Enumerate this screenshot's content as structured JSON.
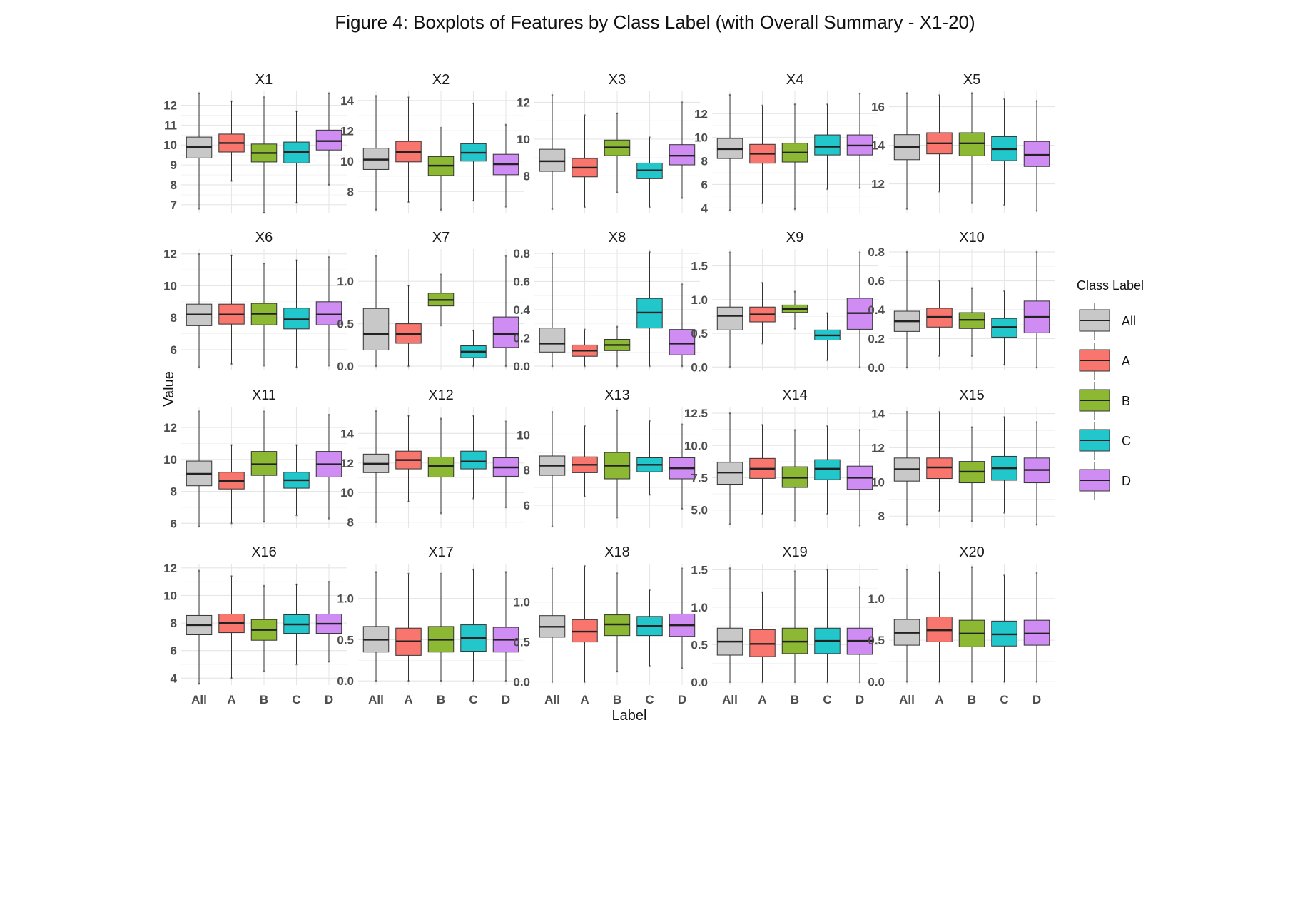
{
  "chart_data": {
    "type": "boxplot",
    "title": "Figure 4: Boxplots of Features by Class Label (with Overall Summary - X1-20)",
    "xlabel": "Label",
    "ylabel": "Value",
    "categories": [
      "All",
      "A",
      "B",
      "C",
      "D"
    ],
    "legend": {
      "title": "Class Label",
      "position": "right",
      "entries": [
        {
          "label": "All",
          "color": "#c8c8c8"
        },
        {
          "label": "A",
          "color": "#f8766d"
        },
        {
          "label": "B",
          "color": "#8cb833"
        },
        {
          "label": "C",
          "color": "#22c7cc"
        },
        {
          "label": "D",
          "color": "#cf8cf3"
        }
      ]
    },
    "grid": true,
    "panels": [
      {
        "name": "X1",
        "ylim": [
          6.6,
          12.7
        ],
        "yticks": [
          7,
          8,
          9,
          10,
          11,
          12
        ],
        "tick_labels": [
          "7",
          "8",
          "9",
          "10",
          "11",
          "12"
        ],
        "boxes": [
          [
            6.8,
            9.35,
            9.9,
            10.4,
            12.6
          ],
          [
            8.2,
            9.65,
            10.1,
            10.55,
            12.2
          ],
          [
            6.6,
            9.15,
            9.6,
            10.05,
            12.4
          ],
          [
            7.1,
            9.1,
            9.65,
            10.15,
            11.7
          ],
          [
            8.0,
            9.75,
            10.2,
            10.75,
            12.6
          ]
        ]
      },
      {
        "name": "X2",
        "ylim": [
          6.6,
          14.6
        ],
        "yticks": [
          8,
          10,
          12,
          14
        ],
        "tick_labels": [
          "8",
          "10",
          "12",
          "14"
        ],
        "boxes": [
          [
            6.8,
            9.45,
            10.1,
            10.85,
            14.3
          ],
          [
            7.3,
            9.95,
            10.6,
            11.3,
            14.2
          ],
          [
            6.8,
            9.05,
            9.7,
            10.3,
            12.2
          ],
          [
            7.4,
            10.0,
            10.55,
            11.15,
            13.8
          ],
          [
            7.0,
            9.1,
            9.8,
            10.45,
            12.4
          ]
        ]
      },
      {
        "name": "X3",
        "ylim": [
          6.0,
          12.6
        ],
        "yticks": [
          8,
          10,
          12
        ],
        "tick_labels": [
          "8",
          "10",
          "12"
        ],
        "boxes": [
          [
            6.2,
            8.25,
            8.8,
            9.45,
            12.4
          ],
          [
            6.3,
            7.95,
            8.45,
            8.95,
            11.3
          ],
          [
            7.1,
            9.1,
            9.55,
            9.95,
            11.4
          ],
          [
            6.3,
            7.85,
            8.3,
            8.7,
            10.1
          ],
          [
            6.8,
            8.6,
            9.1,
            9.7,
            12.0
          ]
        ]
      },
      {
        "name": "X4",
        "ylim": [
          3.6,
          13.9
        ],
        "yticks": [
          4,
          6,
          8,
          10,
          12
        ],
        "tick_labels": [
          "4",
          "6",
          "8",
          "10",
          "12"
        ],
        "boxes": [
          [
            3.8,
            8.2,
            9.0,
            9.9,
            13.6
          ],
          [
            4.4,
            7.8,
            8.6,
            9.4,
            12.7
          ],
          [
            3.9,
            7.9,
            8.7,
            9.5,
            12.8
          ],
          [
            5.6,
            8.5,
            9.2,
            10.2,
            12.8
          ],
          [
            5.7,
            8.5,
            9.3,
            10.2,
            13.7
          ]
        ]
      },
      {
        "name": "X5",
        "ylim": [
          10.5,
          16.8
        ],
        "yticks": [
          12,
          14,
          16
        ],
        "tick_labels": [
          "12",
          "14",
          "16"
        ],
        "boxes": [
          [
            10.7,
            13.25,
            13.9,
            14.55,
            16.7
          ],
          [
            11.6,
            13.55,
            14.1,
            14.65,
            16.6
          ],
          [
            11.0,
            13.45,
            14.1,
            14.65,
            16.7
          ],
          [
            10.9,
            13.2,
            13.8,
            14.45,
            16.4
          ],
          [
            10.6,
            12.9,
            13.5,
            14.2,
            16.3
          ]
        ]
      },
      {
        "name": "X6",
        "ylim": [
          4.7,
          12.3
        ],
        "yticks": [
          6,
          8,
          10,
          12
        ],
        "tick_labels": [
          "6",
          "8",
          "10",
          "12"
        ],
        "boxes": [
          [
            4.9,
            7.5,
            8.2,
            8.85,
            12.0
          ],
          [
            5.1,
            7.6,
            8.2,
            8.85,
            11.9
          ],
          [
            5.0,
            7.55,
            8.25,
            8.9,
            11.4
          ],
          [
            4.9,
            7.3,
            7.9,
            8.6,
            11.6
          ],
          [
            5.0,
            7.55,
            8.2,
            9.0,
            11.8
          ]
        ]
      },
      {
        "name": "X7",
        "ylim": [
          -0.05,
          1.38
        ],
        "yticks": [
          0.0,
          0.5,
          1.0
        ],
        "tick_labels": [
          "0.0",
          "0.5",
          "1.0"
        ],
        "boxes": [
          [
            0.0,
            0.19,
            0.38,
            0.68,
            1.3
          ],
          [
            0.0,
            0.27,
            0.38,
            0.5,
            0.95
          ],
          [
            0.48,
            0.71,
            0.78,
            0.86,
            1.08
          ],
          [
            0.0,
            0.1,
            0.17,
            0.24,
            0.42
          ],
          [
            0.0,
            0.22,
            0.38,
            0.58,
            1.3
          ]
        ]
      },
      {
        "name": "X8",
        "ylim": [
          -0.03,
          0.83
        ],
        "yticks": [
          0.0,
          0.2,
          0.4,
          0.6,
          0.8
        ],
        "tick_labels": [
          "0.0",
          "0.2",
          "0.4",
          "0.6",
          "0.8"
        ],
        "boxes": [
          [
            0.0,
            0.1,
            0.16,
            0.27,
            0.8
          ],
          [
            0.0,
            0.07,
            0.11,
            0.15,
            0.26
          ],
          [
            0.0,
            0.11,
            0.15,
            0.19,
            0.28
          ],
          [
            0.0,
            0.27,
            0.38,
            0.48,
            0.81
          ],
          [
            0.0,
            0.08,
            0.16,
            0.26,
            0.58
          ]
        ]
      },
      {
        "name": "X9",
        "ylim": [
          -0.05,
          1.75
        ],
        "yticks": [
          0.0,
          0.5,
          1.0,
          1.5
        ],
        "tick_labels": [
          "0.0",
          "0.5",
          "1.0",
          "1.5"
        ],
        "boxes": [
          [
            0.0,
            0.55,
            0.76,
            0.89,
            1.7
          ],
          [
            0.35,
            0.67,
            0.78,
            0.89,
            1.25
          ],
          [
            0.57,
            0.81,
            0.86,
            0.92,
            1.12
          ],
          [
            0.1,
            0.4,
            0.47,
            0.55,
            0.8
          ],
          [
            0.0,
            0.56,
            0.8,
            1.02,
            1.7
          ]
        ]
      },
      {
        "name": "X10",
        "ylim": [
          -0.02,
          0.82
        ],
        "yticks": [
          0.0,
          0.2,
          0.4,
          0.6,
          0.8
        ],
        "tick_labels": [
          "0.0",
          "0.2",
          "0.4",
          "0.6",
          "0.8"
        ],
        "boxes": [
          [
            0.0,
            0.25,
            0.32,
            0.39,
            0.8
          ],
          [
            0.08,
            0.28,
            0.35,
            0.41,
            0.6
          ],
          [
            0.08,
            0.27,
            0.33,
            0.38,
            0.55
          ],
          [
            0.02,
            0.21,
            0.28,
            0.34,
            0.53
          ],
          [
            0.0,
            0.24,
            0.35,
            0.46,
            0.8
          ]
        ]
      },
      {
        "name": "X11",
        "ylim": [
          5.7,
          13.3
        ],
        "yticks": [
          6,
          8,
          10,
          12
        ],
        "tick_labels": [
          "6",
          "8",
          "10",
          "12"
        ],
        "boxes": [
          [
            5.8,
            8.35,
            9.1,
            9.9,
            13.0
          ],
          [
            6.0,
            8.15,
            8.65,
            9.2,
            10.9
          ],
          [
            6.1,
            9.0,
            9.7,
            10.5,
            13.0
          ],
          [
            6.5,
            8.2,
            8.7,
            9.2,
            10.9
          ],
          [
            6.3,
            8.9,
            9.7,
            10.5,
            12.8
          ]
        ]
      },
      {
        "name": "X12",
        "ylim": [
          7.6,
          15.8
        ],
        "yticks": [
          8,
          10,
          12,
          14
        ],
        "tick_labels": [
          "8",
          "10",
          "12",
          "14"
        ],
        "boxes": [
          [
            8.0,
            11.35,
            11.95,
            12.6,
            15.5
          ],
          [
            9.4,
            11.6,
            12.2,
            12.8,
            15.2
          ],
          [
            8.6,
            11.05,
            11.8,
            12.4,
            15.0
          ],
          [
            9.6,
            11.6,
            12.1,
            12.8,
            15.2
          ],
          [
            9.0,
            11.1,
            11.7,
            12.35,
            14.8
          ]
        ]
      },
      {
        "name": "X13",
        "ylim": [
          4.7,
          11.6
        ],
        "yticks": [
          6,
          8,
          10
        ],
        "tick_labels": [
          "6",
          "8",
          "10"
        ],
        "boxes": [
          [
            4.8,
            7.7,
            8.25,
            8.8,
            11.3
          ],
          [
            6.5,
            7.85,
            8.3,
            8.75,
            10.5
          ],
          [
            5.3,
            7.5,
            8.25,
            9.0,
            11.4
          ],
          [
            6.6,
            7.9,
            8.3,
            8.7,
            10.8
          ],
          [
            5.8,
            7.5,
            8.1,
            8.7,
            10.6
          ]
        ]
      },
      {
        "name": "X14",
        "ylim": [
          3.6,
          13.0
        ],
        "yticks": [
          5.0,
          7.5,
          10.0,
          12.5
        ],
        "tick_labels": [
          "5.0",
          "7.5",
          "10.0",
          "12.5"
        ],
        "boxes": [
          [
            3.9,
            7.0,
            7.9,
            8.7,
            12.5
          ],
          [
            4.7,
            7.45,
            8.2,
            9.0,
            11.6
          ],
          [
            4.2,
            6.75,
            7.5,
            8.35,
            11.2
          ],
          [
            4.7,
            7.35,
            8.2,
            8.9,
            11.5
          ],
          [
            3.8,
            6.6,
            7.5,
            8.4,
            11.2
          ]
        ]
      },
      {
        "name": "X15",
        "ylim": [
          7.3,
          14.4
        ],
        "yticks": [
          8,
          10,
          12,
          14
        ],
        "tick_labels": [
          "8",
          "10",
          "12",
          "14"
        ],
        "boxes": [
          [
            7.5,
            10.05,
            10.75,
            11.4,
            14.1
          ],
          [
            8.3,
            10.2,
            10.85,
            11.4,
            14.1
          ],
          [
            7.7,
            9.95,
            10.6,
            11.2,
            13.2
          ],
          [
            8.2,
            10.1,
            10.8,
            11.5,
            13.8
          ],
          [
            7.5,
            9.95,
            10.7,
            11.4,
            13.5
          ]
        ]
      },
      {
        "name": "X16",
        "ylim": [
          3.5,
          12.3
        ],
        "yticks": [
          4,
          6,
          8,
          10,
          12
        ],
        "tick_labels": [
          "4",
          "6",
          "8",
          "10",
          "12"
        ],
        "boxes": [
          [
            3.6,
            7.15,
            7.85,
            8.55,
            11.8
          ],
          [
            4.0,
            7.3,
            8.0,
            8.65,
            11.4
          ],
          [
            4.5,
            6.75,
            7.5,
            8.25,
            10.7
          ],
          [
            5.0,
            7.25,
            7.9,
            8.6,
            10.8
          ],
          [
            5.2,
            7.25,
            7.95,
            8.65,
            11.0
          ]
        ]
      },
      {
        "name": "X17",
        "ylim": [
          -0.05,
          1.42
        ],
        "yticks": [
          0.0,
          0.5,
          1.0
        ],
        "tick_labels": [
          "0.0",
          "0.5",
          "1.0"
        ],
        "boxes": [
          [
            0.0,
            0.35,
            0.5,
            0.66,
            1.32
          ],
          [
            0.0,
            0.31,
            0.48,
            0.64,
            1.3
          ],
          [
            0.0,
            0.35,
            0.5,
            0.66,
            1.3
          ],
          [
            0.0,
            0.36,
            0.52,
            0.68,
            1.35
          ],
          [
            0.0,
            0.35,
            0.5,
            0.65,
            1.32
          ]
        ]
      },
      {
        "name": "X18",
        "ylim": [
          -0.04,
          1.48
        ],
        "yticks": [
          0.0,
          0.5,
          1.0
        ],
        "tick_labels": [
          "0.0",
          "0.5",
          "1.0"
        ],
        "boxes": [
          [
            0.0,
            0.56,
            0.69,
            0.83,
            1.42
          ],
          [
            0.0,
            0.5,
            0.63,
            0.78,
            1.45
          ],
          [
            0.13,
            0.58,
            0.72,
            0.84,
            1.36
          ],
          [
            0.2,
            0.58,
            0.7,
            0.82,
            1.15
          ],
          [
            0.17,
            0.57,
            0.71,
            0.85,
            1.42
          ]
        ]
      },
      {
        "name": "X19",
        "ylim": [
          -0.04,
          1.58
        ],
        "yticks": [
          0.0,
          0.5,
          1.0,
          1.5
        ],
        "tick_labels": [
          "0.0",
          "0.5",
          "1.0",
          "1.5"
        ],
        "boxes": [
          [
            0.0,
            0.36,
            0.54,
            0.72,
            1.52
          ],
          [
            0.0,
            0.34,
            0.51,
            0.7,
            1.2
          ],
          [
            0.0,
            0.38,
            0.54,
            0.72,
            1.48
          ],
          [
            0.0,
            0.38,
            0.55,
            0.72,
            1.5
          ],
          [
            0.0,
            0.37,
            0.55,
            0.72,
            1.27
          ]
        ]
      },
      {
        "name": "X20",
        "ylim": [
          -0.04,
          1.42
        ],
        "yticks": [
          0.0,
          0.5,
          1.0
        ],
        "tick_labels": [
          "0.0",
          "0.5",
          "1.0"
        ],
        "boxes": [
          [
            0.0,
            0.44,
            0.59,
            0.75,
            1.35
          ],
          [
            0.0,
            0.48,
            0.62,
            0.78,
            1.32
          ],
          [
            0.0,
            0.42,
            0.58,
            0.74,
            1.38
          ],
          [
            0.0,
            0.43,
            0.57,
            0.73,
            1.28
          ],
          [
            0.0,
            0.44,
            0.58,
            0.74,
            1.31
          ]
        ]
      }
    ]
  }
}
